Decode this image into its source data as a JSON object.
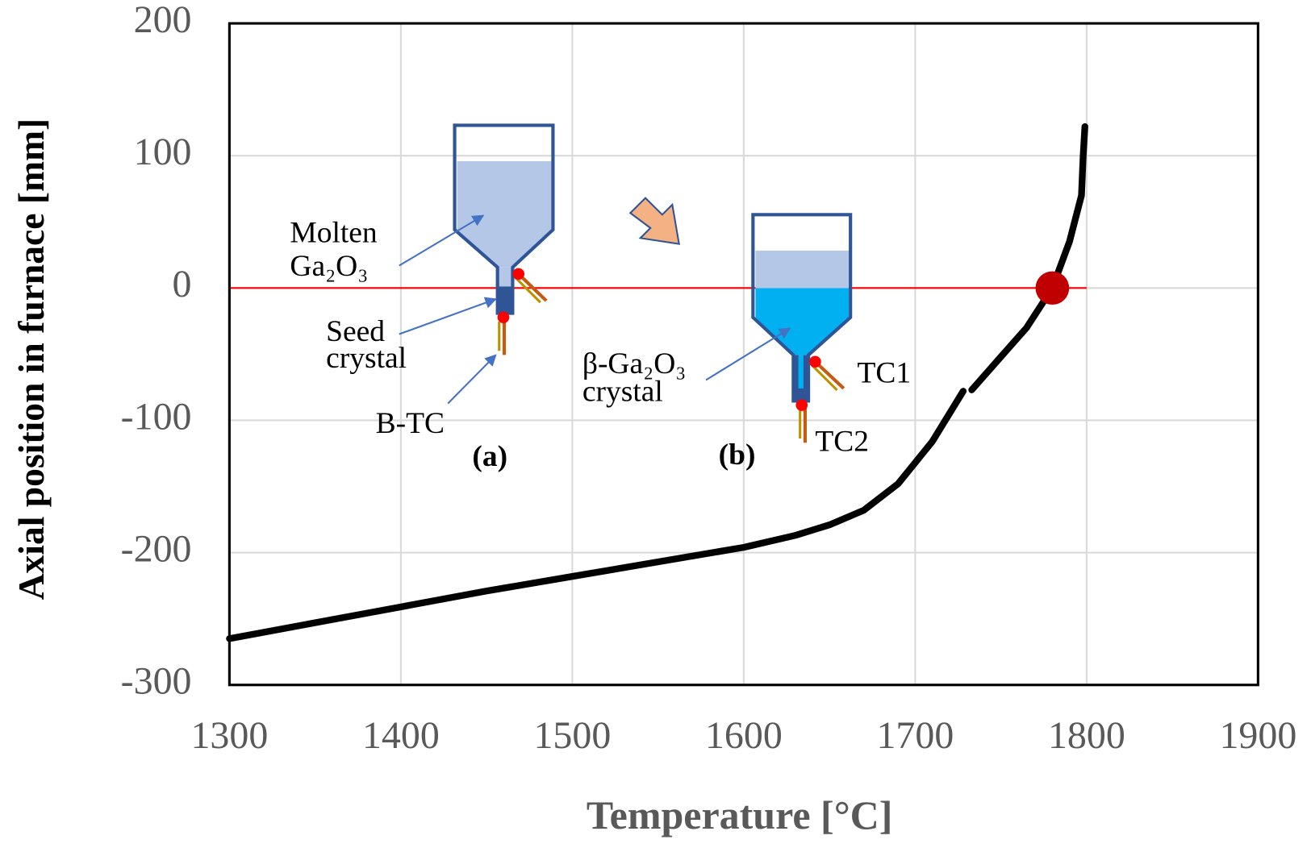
{
  "chart_data": {
    "type": "line",
    "x_label": "Temperature [°C]",
    "y_label": "Axial position in furnace [mm]",
    "xlim": [
      1300,
      1900
    ],
    "ylim": [
      -300,
      200
    ],
    "xticks": [
      1300,
      1400,
      1500,
      1600,
      1700,
      1800,
      1900
    ],
    "yticks": [
      -300,
      -200,
      -100,
      0,
      100,
      200
    ],
    "grid": true,
    "series": [
      {
        "color": "#000000",
        "style": "line",
        "x": [
          1300,
          1350,
          1400,
          1450,
          1500,
          1550,
          1600,
          1630,
          1650,
          1670,
          1690,
          1710,
          1728,
          1730,
          1733,
          1750,
          1765,
          1780,
          1790,
          1797,
          1798,
          1799
        ],
        "values": [
          -265,
          -253,
          -241,
          -229,
          -218,
          -207,
          -196,
          -187,
          -179,
          -168,
          -148,
          -116,
          -78,
          null,
          -77,
          -52,
          -30,
          0,
          35,
          70,
          100,
          122
        ]
      },
      {
        "color": "#c00000",
        "style": "marker",
        "x": [
          1780
        ],
        "values": [
          0
        ]
      }
    ],
    "reference_line": {
      "y": 0,
      "x": [
        1300,
        1800
      ],
      "color": "#ff0000"
    },
    "annotations": [
      "Molten",
      "Ga₂O₃",
      "Seed",
      "crystal",
      "B-TC",
      "(a)",
      "(b)",
      "β-Ga₂O₃",
      "crystal",
      "TC1",
      "TC2"
    ]
  }
}
